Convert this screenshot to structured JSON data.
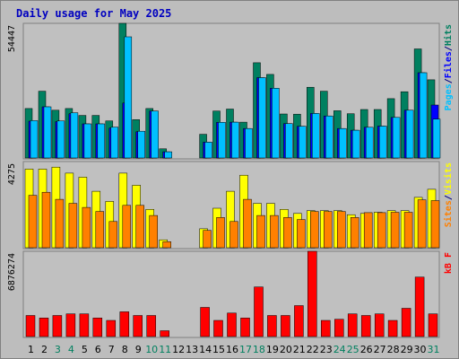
{
  "chart_data": {
    "type": "bar",
    "title": "Daily usage for May 2025",
    "categories": [
      "1",
      "2",
      "3",
      "4",
      "5",
      "6",
      "7",
      "8",
      "9",
      "10",
      "11",
      "12",
      "13",
      "14",
      "15",
      "16",
      "17",
      "18",
      "19",
      "20",
      "21",
      "22",
      "23",
      "24",
      "25",
      "26",
      "27",
      "28",
      "29",
      "30",
      "31"
    ],
    "weekend_days": [
      "3",
      "4",
      "10",
      "11",
      "17",
      "18",
      "24",
      "25",
      "31"
    ],
    "panels": [
      {
        "id": "top",
        "ymax_label": "54447",
        "ymax": 54447,
        "series": [
          {
            "name": "Hits",
            "color": "#008060",
            "values": [
              20000,
              27000,
              19300,
              20000,
              17200,
              17200,
              15000,
              54447,
              15500,
              20000,
              3700,
              0,
              0,
              9600,
              19000,
              19800,
              14500,
              38500,
              33800,
              17800,
              17700,
              28600,
              27000,
              19100,
              17900,
              19600,
              19600,
              24000,
              26800,
              44100,
              31600
            ]
          },
          {
            "name": "Files",
            "color": "#0000ff",
            "values": [
              14900,
              20700,
              14700,
              17900,
              13800,
              13800,
              12100,
              22200,
              10600,
              19000,
              2500,
              0,
              0,
              6400,
              14400,
              14500,
              11900,
              32500,
              28200,
              13900,
              12800,
              18000,
              17000,
              11900,
              11200,
              12400,
              12900,
              16400,
              19300,
              34500,
              21400
            ]
          },
          {
            "name": "Pages",
            "color": "#00c0ff",
            "values": [
              15100,
              20700,
              15000,
              18300,
              13800,
              13800,
              12500,
              49000,
              10800,
              19000,
              2500,
              0,
              0,
              6400,
              14400,
              14500,
              11900,
              32500,
              28200,
              13900,
              12800,
              18000,
              17000,
              11900,
              11200,
              12400,
              12900,
              16400,
              19300,
              34500,
              15700
            ]
          }
        ]
      },
      {
        "id": "middle",
        "ymax_label": "4275",
        "ymax": 4275,
        "series": [
          {
            "name": "Visits",
            "color": "#ffff00",
            "values": [
              3900,
              3900,
              4000,
              3700,
              3500,
              2800,
              2300,
              3700,
              3100,
              1900,
              390,
              0,
              0,
              940,
              1960,
              2800,
              3600,
              2200,
              2200,
              1900,
              1700,
              1840,
              1840,
              1840,
              1640,
              1700,
              1760,
              1840,
              1840,
              2500,
              2900
            ]
          },
          {
            "name": "Sites",
            "color": "#ff8000",
            "values": [
              2600,
              2750,
              2400,
              2200,
              2000,
              1800,
              1300,
              2100,
              2100,
              1600,
              300,
              0,
              0,
              860,
              1500,
              1300,
              2400,
              1600,
              1600,
              1500,
              1400,
              1800,
              1800,
              1800,
              1500,
              1740,
              1740,
              1760,
              1760,
              2380,
              2340
            ]
          }
        ]
      },
      {
        "id": "bottom",
        "ymax_label": "6876274",
        "ymax": 6876274,
        "series": [
          {
            "name": "kB F",
            "color": "#ff0000",
            "values": [
              1700000,
              1500000,
              1700000,
              1830000,
              1830000,
              1500000,
              1300000,
              2000000,
              1700000,
              1700000,
              470000,
              0,
              0,
              2350000,
              1300000,
              1900000,
              1500000,
              4000000,
              1700000,
              1700000,
              2500000,
              6876274,
              1300000,
              1400000,
              1830000,
              1700000,
              1830000,
              1300000,
              2280000,
              4800000,
              1830000
            ]
          }
        ]
      }
    ],
    "right_labels": {
      "top": [
        {
          "text": "Pages",
          "color": "#00c0ff"
        },
        {
          "text": "/",
          "color": "#000080"
        },
        {
          "text": "Files",
          "color": "#0000ff"
        },
        {
          "text": "/",
          "color": "#000080"
        },
        {
          "text": "Hits",
          "color": "#008060"
        }
      ],
      "middle": [
        {
          "text": "Sites",
          "color": "#ff8000"
        },
        {
          "text": "/",
          "color": "#000080"
        },
        {
          "text": "Visits",
          "color": "#ffff00"
        }
      ],
      "bottom": [
        {
          "text": "kB F",
          "color": "#ff0000"
        }
      ]
    },
    "grid": false
  }
}
